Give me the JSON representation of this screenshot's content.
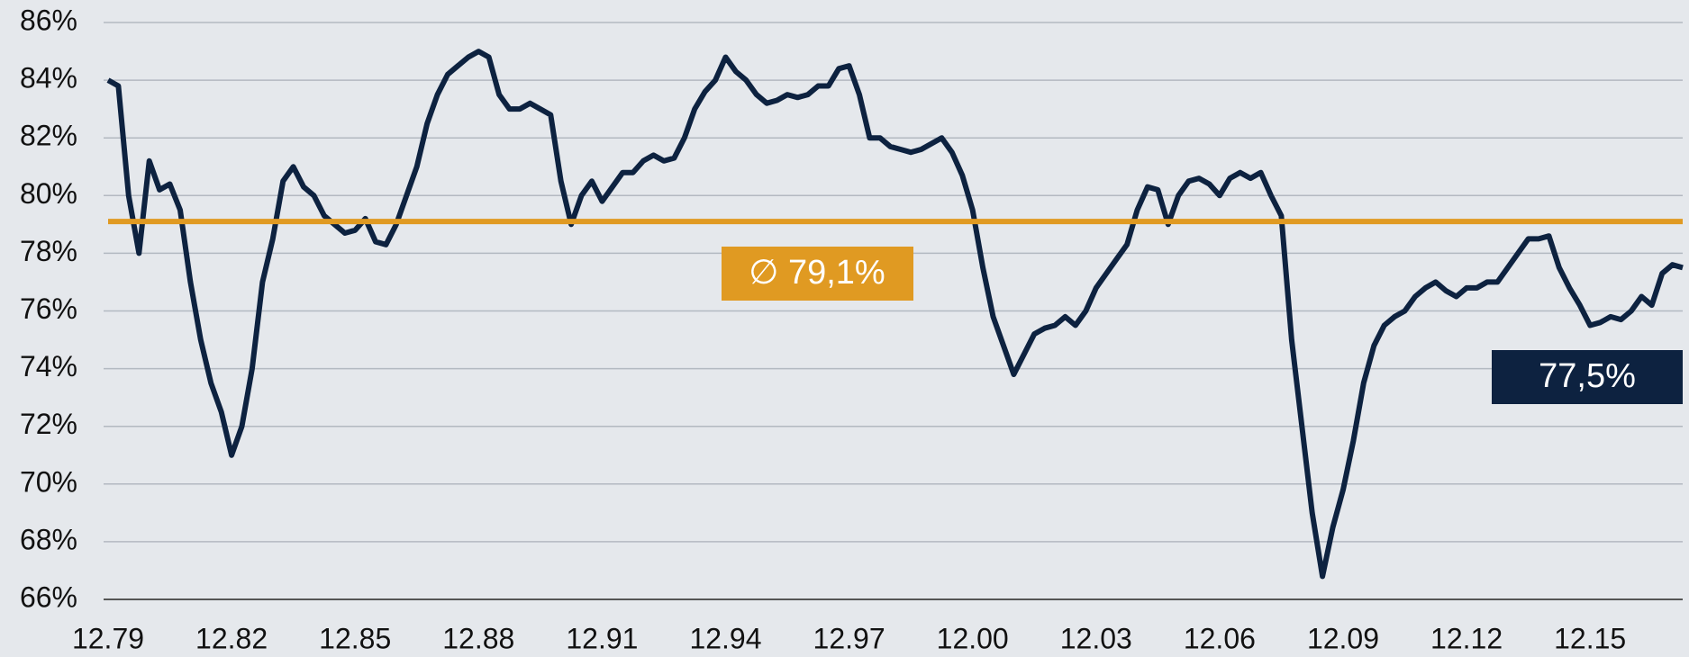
{
  "chart_data": {
    "type": "line",
    "categories": [
      "12.79",
      null,
      null,
      null,
      null,
      null,
      null,
      null,
      null,
      null,
      null,
      null,
      "12.82",
      null,
      null,
      null,
      null,
      null,
      null,
      null,
      null,
      null,
      null,
      null,
      "12.85",
      null,
      null,
      null,
      null,
      null,
      null,
      null,
      null,
      null,
      null,
      null,
      "12.88",
      null,
      null,
      null,
      null,
      null,
      null,
      null,
      null,
      null,
      null,
      null,
      "12.91",
      null,
      null,
      null,
      null,
      null,
      null,
      null,
      null,
      null,
      null,
      null,
      "12.94",
      null,
      null,
      null,
      null,
      null,
      null,
      null,
      null,
      null,
      null,
      null,
      "12.97",
      null,
      null,
      null,
      null,
      null,
      null,
      null,
      null,
      null,
      null,
      null,
      "12.00",
      null,
      null,
      null,
      null,
      null,
      null,
      null,
      null,
      null,
      null,
      null,
      "12.03",
      null,
      null,
      null,
      null,
      null,
      null,
      null,
      null,
      null,
      null,
      null,
      "12.06",
      null,
      null,
      null,
      null,
      null,
      null,
      null,
      null,
      null,
      null,
      null,
      "12.09",
      null,
      null,
      null,
      null,
      null,
      null,
      null,
      null,
      null,
      null,
      null,
      "12.12",
      null,
      null,
      null,
      null,
      null,
      null,
      null,
      null,
      null,
      null,
      null,
      "12.15",
      null,
      null,
      null,
      null,
      null,
      null,
      null,
      null,
      null
    ],
    "values": [
      84.0,
      83.8,
      80,
      78.0,
      81.2,
      80.2,
      80.4,
      79.5,
      77.0,
      75.0,
      73.5,
      72.5,
      71.0,
      72.0,
      74.0,
      77.0,
      78.5,
      80.5,
      81.0,
      80.3,
      80.0,
      79.3,
      79.0,
      78.7,
      78.8,
      79.2,
      78.4,
      78.3,
      79.0,
      80.0,
      81.0,
      82.5,
      83.5,
      84.2,
      84.5,
      84.8,
      85.0,
      84.8,
      83.5,
      83.0,
      83.0,
      83.2,
      83.0,
      82.8,
      80.5,
      79.0,
      80.0,
      80.5,
      79.8,
      80.3,
      80.8,
      80.8,
      81.2,
      81.4,
      81.2,
      81.3,
      82.0,
      83.0,
      83.6,
      84.0,
      84.8,
      84.3,
      84.0,
      83.5,
      83.2,
      83.3,
      83.5,
      83.4,
      83.5,
      83.8,
      83.8,
      84.4,
      84.5,
      83.5,
      82.0,
      82.0,
      81.7,
      81.6,
      81.5,
      81.6,
      81.8,
      82.0,
      81.5,
      80.7,
      79.5,
      77.5,
      75.8,
      74.8,
      73.8,
      74.5,
      75.2,
      75.4,
      75.5,
      75.8,
      75.5,
      76.0,
      76.8,
      77.3,
      77.8,
      78.3,
      79.5,
      80.3,
      80.2,
      79.0,
      80.0,
      80.5,
      80.6,
      80.4,
      80.0,
      80.6,
      80.8,
      80.6,
      80.8,
      80.0,
      79.3,
      75.0,
      72.0,
      69.0,
      66.8,
      68.5,
      69.8,
      71.5,
      73.5,
      74.8,
      75.5,
      75.8,
      76.0,
      76.5,
      76.8,
      77.0,
      76.7,
      76.5,
      76.8,
      76.8,
      77.0,
      77.0,
      77.5,
      78.0,
      78.5,
      78.5,
      78.6,
      77.5,
      76.8,
      76.2,
      75.5,
      75.6,
      75.8,
      75.7,
      76.0,
      76.5,
      76.2,
      77.3,
      77.6,
      77.5
    ],
    "color": "#0d2240",
    "ylim": [
      66,
      86
    ],
    "yticks": [
      {
        "value": 66,
        "label": "66%"
      },
      {
        "value": 68,
        "label": "68%"
      },
      {
        "value": 70,
        "label": "70%"
      },
      {
        "value": 72,
        "label": "72%"
      },
      {
        "value": 74,
        "label": "74%"
      },
      {
        "value": 76,
        "label": "76%"
      },
      {
        "value": 78,
        "label": "78%"
      },
      {
        "value": 80,
        "label": "80%"
      },
      {
        "value": 82,
        "label": "82%"
      },
      {
        "value": 84,
        "label": "84%"
      },
      {
        "value": 86,
        "label": "86%"
      }
    ],
    "grid": true,
    "average": {
      "value": 79.1,
      "label": "∅ 79,1%",
      "color": "#e09a22"
    },
    "last_value_label": "77,5%"
  }
}
